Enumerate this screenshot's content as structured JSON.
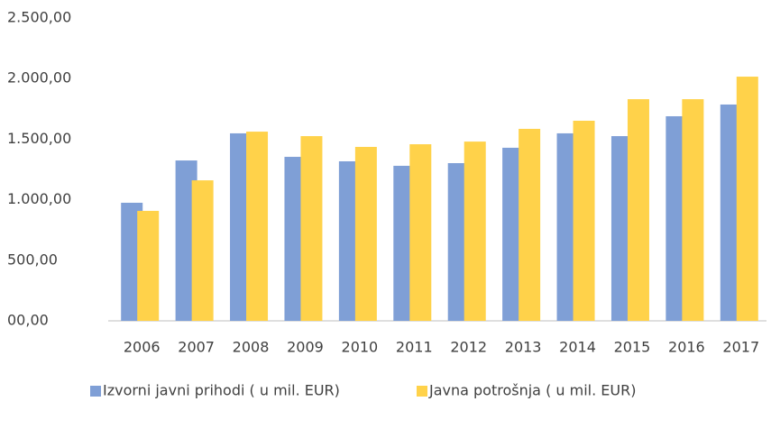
{
  "chart_data": {
    "type": "bar",
    "categories": [
      "2006",
      "2007",
      "2008",
      "2009",
      "2010",
      "2011",
      "2012",
      "2013",
      "2014",
      "2015",
      "2016",
      "2017"
    ],
    "series": [
      {
        "name": "Izvorni javni prihodi ( u mil. EUR)",
        "color": "#7f9fd6",
        "values": [
          975,
          1324,
          1548,
          1354,
          1317,
          1280,
          1302,
          1429,
          1548,
          1525,
          1689,
          1786
        ]
      },
      {
        "name": "Javna potrošnja ( u mil. EUR)",
        "color": "#ffd24a",
        "values": [
          908,
          1160,
          1562,
          1525,
          1436,
          1458,
          1480,
          1585,
          1652,
          1830,
          1830,
          2016
        ]
      }
    ],
    "ylim": [
      0,
      2500
    ],
    "yticks": [
      {
        "value": 0,
        "label": "00,00"
      },
      {
        "value": 500,
        "label": "500,00"
      },
      {
        "value": 1000,
        "label": "1.000,00"
      },
      {
        "value": 1500,
        "label": "1.500,00"
      },
      {
        "value": 2000,
        "label": "2.000,00"
      },
      {
        "value": 2500,
        "label": "2.500,00"
      }
    ],
    "grid": false,
    "legend": "bottom"
  }
}
